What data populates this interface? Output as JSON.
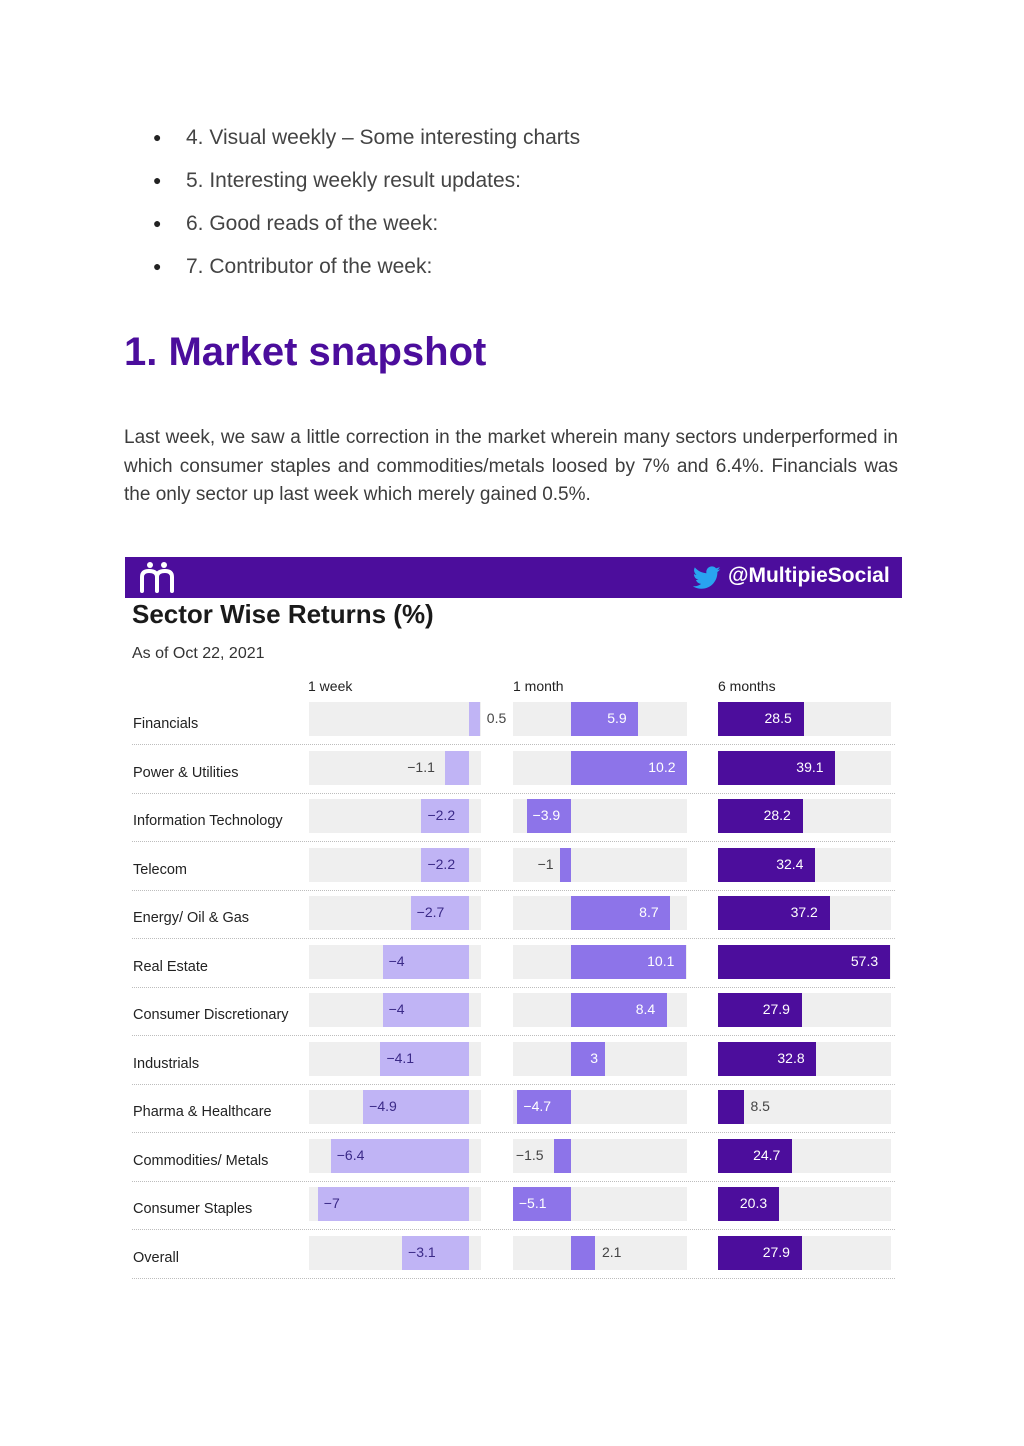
{
  "toc": [
    "4. Visual weekly – Some interesting charts",
    "5. Interesting weekly result updates:",
    "6. Good reads of the week:",
    "7. Contributor of the week:"
  ],
  "heading": "1. Market snapshot",
  "paragraph": "Last week, we saw a little correction in the market wherein many sectors underperformed in which consumer staples and commodities/metals loosed by 7% and 6.4%. Financials was the only sector up last week which merely gained 0.5%.",
  "colors": {
    "brand": "#4c0d9c",
    "heading": "#4b0d9c",
    "week_bar": "#c0b4f5",
    "month_bar": "#8d74e9",
    "six_month_bar": "#4c0d9c",
    "track": "#efefef"
  },
  "chart_data": {
    "type": "bar",
    "banner_handle": "@MultipieSocial",
    "title": "Sector Wise Returns (%)",
    "subtitle": "As of Oct 22, 2021",
    "periods": [
      "1 week",
      "1 month",
      "6 months"
    ],
    "categories": [
      "Financials",
      "Power & Utilities",
      "Information Technology",
      "Telecom",
      "Energy/ Oil & Gas",
      "Real Estate",
      "Consumer Discretionary",
      "Industrials",
      "Pharma & Healthcare",
      "Commodities/ Metals",
      "Consumer Staples",
      "Overall"
    ],
    "series": [
      {
        "name": "1 week",
        "values": [
          0.5,
          -1.1,
          -2.2,
          -2.2,
          -2.7,
          -4,
          -4,
          -4.1,
          -4.9,
          -6.4,
          -7,
          -3.1
        ],
        "labels": [
          "0.5",
          "−1.1",
          "−2.2",
          "−2.2",
          "−2.7",
          "−4",
          "−4",
          "−4.1",
          "−4.9",
          "−6.4",
          "−7",
          "−3.1"
        ]
      },
      {
        "name": "1 month",
        "values": [
          5.9,
          10.2,
          -3.9,
          -1,
          8.7,
          10.1,
          8.4,
          3,
          -4.7,
          -1.5,
          -5.1,
          2.1
        ],
        "labels": [
          "5.9",
          "10.2",
          "−3.9",
          "−1",
          "8.7",
          "10.1",
          "8.4",
          "3",
          "−4.7",
          "−1.5",
          "−5.1",
          "2.1"
        ]
      },
      {
        "name": "6 months",
        "values": [
          28.5,
          39.1,
          28.2,
          32.4,
          37.2,
          57.3,
          27.9,
          32.8,
          8.5,
          24.7,
          20.3,
          27.9
        ],
        "labels": [
          "28.5",
          "39.1",
          "28.2",
          "32.4",
          "37.2",
          "57.3",
          "27.9",
          "32.8",
          "8.5",
          "24.7",
          "20.3",
          "27.9"
        ]
      }
    ]
  }
}
